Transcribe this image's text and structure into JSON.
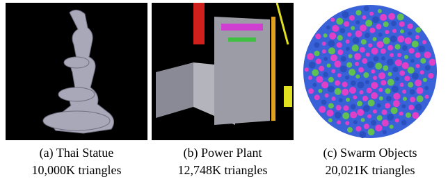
{
  "figures": [
    {
      "caption": "(a) Thai Statue",
      "detail": "10,000K triangles"
    },
    {
      "caption": "(b) Power Plant",
      "detail": "12,748K triangles"
    },
    {
      "caption": "(c) Swarm Objects",
      "detail": "20,021K triangles"
    }
  ]
}
